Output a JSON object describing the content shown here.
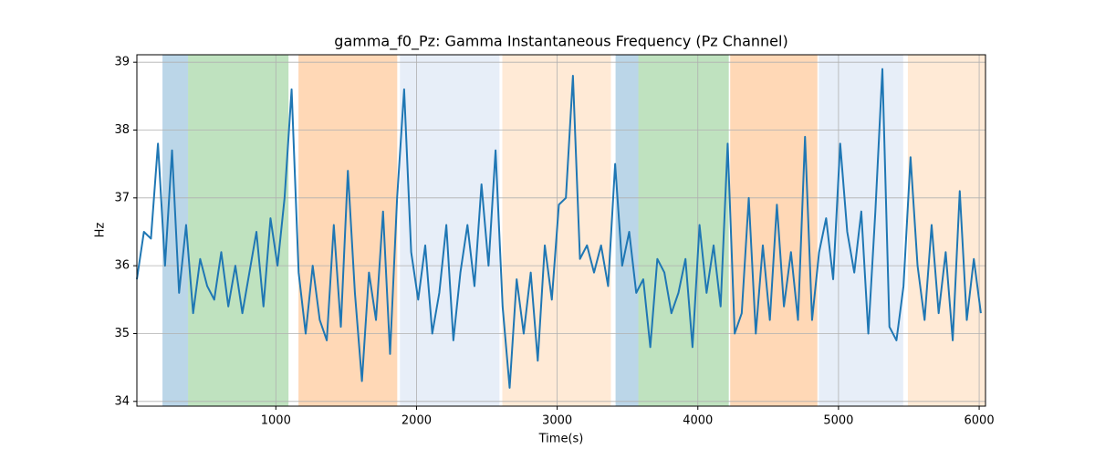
{
  "chart_data": {
    "type": "line",
    "title": "gamma_f0_Pz: Gamma Instantaneous Frequency (Pz Channel)",
    "x_label": "Time(s)",
    "y_label": "Hz",
    "x": [
      12,
      62,
      112,
      162,
      212,
      262,
      312,
      362,
      412,
      462,
      512,
      562,
      612,
      662,
      712,
      762,
      812,
      862,
      912,
      962,
      1012,
      1062,
      1112,
      1162,
      1212,
      1262,
      1312,
      1362,
      1412,
      1462,
      1512,
      1562,
      1612,
      1662,
      1712,
      1762,
      1812,
      1862,
      1912,
      1962,
      2012,
      2062,
      2112,
      2162,
      2212,
      2262,
      2312,
      2362,
      2412,
      2462,
      2512,
      2562,
      2612,
      2662,
      2712,
      2762,
      2812,
      2862,
      2912,
      2962,
      3012,
      3062,
      3112,
      3162,
      3212,
      3262,
      3312,
      3362,
      3412,
      3462,
      3512,
      3562,
      3612,
      3662,
      3712,
      3762,
      3812,
      3862,
      3912,
      3962,
      4012,
      4062,
      4112,
      4162,
      4212,
      4262,
      4312,
      4362,
      4412,
      4462,
      4512,
      4562,
      4612,
      4662,
      4712,
      4762,
      4812,
      4862,
      4912,
      4962,
      5012,
      5062,
      5112,
      5162,
      5212,
      5262,
      5312,
      5362,
      5412,
      5462,
      5512,
      5562,
      5612,
      5662,
      5712,
      5762,
      5812,
      5862,
      5912,
      5962,
      6012
    ],
    "series": [
      {
        "name": "gamma_f0_Pz",
        "color": "#1f77b4",
        "values": [
          35.8,
          36.5,
          36.4,
          37.8,
          36.0,
          37.7,
          35.6,
          36.6,
          35.3,
          36.1,
          35.7,
          35.5,
          36.2,
          35.4,
          36.0,
          35.3,
          35.9,
          36.5,
          35.4,
          36.7,
          36.0,
          37.0,
          38.6,
          35.9,
          35.0,
          36.0,
          35.2,
          34.9,
          36.6,
          35.1,
          37.4,
          35.6,
          34.3,
          35.9,
          35.2,
          36.8,
          34.7,
          37.0,
          38.6,
          36.2,
          35.5,
          36.3,
          35.0,
          35.6,
          36.6,
          34.9,
          35.9,
          36.6,
          35.7,
          37.2,
          36.0,
          37.7,
          35.4,
          34.2,
          35.8,
          35.0,
          35.9,
          34.6,
          36.3,
          35.5,
          36.9,
          37.0,
          38.8,
          36.1,
          36.3,
          35.9,
          36.3,
          35.7,
          37.5,
          36.0,
          36.5,
          35.6,
          35.8,
          34.8,
          36.1,
          35.9,
          35.3,
          35.6,
          36.1,
          34.8,
          36.6,
          35.6,
          36.3,
          35.4,
          37.8,
          35.0,
          35.3,
          37.0,
          35.0,
          36.3,
          35.2,
          36.9,
          35.4,
          36.2,
          35.2,
          37.9,
          35.2,
          36.2,
          36.7,
          35.8,
          37.8,
          36.5,
          35.9,
          36.8,
          35.0,
          36.8,
          38.9,
          35.1,
          34.9,
          35.7,
          37.6,
          36.0,
          35.2,
          36.6,
          35.3,
          36.2,
          34.9,
          37.1,
          35.2,
          36.1,
          35.3
        ]
      }
    ],
    "spans": [
      {
        "start": 194,
        "end": 376,
        "color": "#1f77b4"
      },
      {
        "start": 376,
        "end": 1090,
        "color": "#2ca02c"
      },
      {
        "start": 1161,
        "end": 1863,
        "color": "#ff7f0e"
      },
      {
        "start": 1882,
        "end": 2590,
        "color": "#aec7e8"
      },
      {
        "start": 2610,
        "end": 3382,
        "color": "#ffbb78"
      },
      {
        "start": 3415,
        "end": 3577,
        "color": "#1f77b4"
      },
      {
        "start": 3577,
        "end": 4220,
        "color": "#2ca02c"
      },
      {
        "start": 4230,
        "end": 4850,
        "color": "#ff7f0e"
      },
      {
        "start": 4860,
        "end": 5460,
        "color": "#aec7e8"
      },
      {
        "start": 5493,
        "end": 6045,
        "color": "#ffbb78"
      }
    ],
    "xlim": [
      12,
      6045
    ],
    "xticks": [
      1000,
      2000,
      3000,
      4000,
      5000,
      6000
    ],
    "ylim": [
      33.93,
      39.11
    ],
    "yticks": [
      34,
      35,
      36,
      37,
      38,
      39
    ],
    "grid": true
  }
}
